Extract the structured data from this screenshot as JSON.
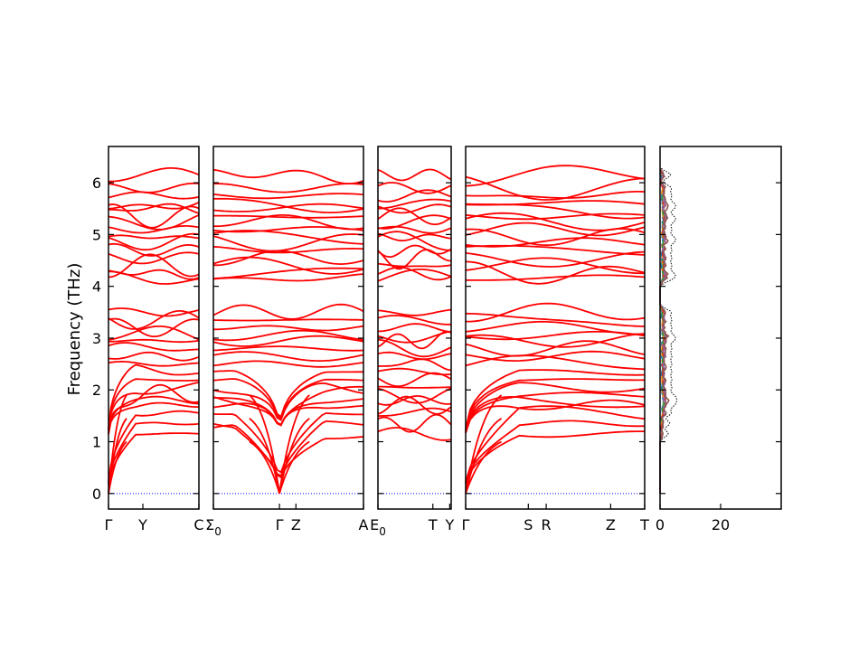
{
  "chart_data": {
    "type": "line",
    "title": "",
    "ylabel": "Frequency (THz)",
    "ylim": [
      -0.3,
      6.7
    ],
    "yticks": [
      0,
      1,
      2,
      3,
      4,
      5,
      6
    ],
    "band_color": "#ff0000",
    "zero_line_color": "#0000ff",
    "panels": [
      {
        "segments": [
          {
            "ticks": [
              "Γ",
              "Y",
              "C"
            ],
            "tick_pos": [
              0,
              0.38,
              1.0
            ]
          }
        ]
      },
      {
        "segments": [
          {
            "ticks": [
              "Σ_0",
              "Γ",
              "Z",
              "A"
            ],
            "tick_pos": [
              0,
              0.44,
              0.55,
              1.0
            ]
          }
        ]
      },
      {
        "segments": [
          {
            "ticks": [
              "E_0",
              "T",
              "Y"
            ],
            "tick_pos": [
              0,
              0.75,
              0.98
            ]
          }
        ]
      },
      {
        "segments": [
          {
            "ticks": [
              "Γ",
              "S",
              "R",
              "Z",
              "T"
            ],
            "tick_pos": [
              0,
              0.35,
              0.45,
              0.81,
              1.0
            ]
          }
        ]
      }
    ],
    "dos": {
      "xlim": [
        0,
        40
      ],
      "xticks": [
        0,
        20
      ],
      "series": [
        {
          "color": "#000000",
          "style": "dotted"
        },
        {
          "color": "#1f77b4",
          "style": "solid"
        },
        {
          "color": "#ff7f0e",
          "style": "solid"
        },
        {
          "color": "#2ca02c",
          "style": "solid"
        },
        {
          "color": "#d62728",
          "style": "solid"
        },
        {
          "color": "#9467bd",
          "style": "solid"
        },
        {
          "color": "#8c564b",
          "style": "solid"
        }
      ]
    },
    "band_levels": [
      1.15,
      1.35,
      1.55,
      1.7,
      1.8,
      1.9,
      2.05,
      2.2,
      2.35,
      2.5,
      2.65,
      2.8,
      2.95,
      3.05,
      3.2,
      3.35,
      3.5,
      4.15,
      4.25,
      4.4,
      4.55,
      4.7,
      4.85,
      4.95,
      5.1,
      5.25,
      5.35,
      5.5,
      5.6,
      5.75,
      5.9,
      6.15
    ]
  }
}
